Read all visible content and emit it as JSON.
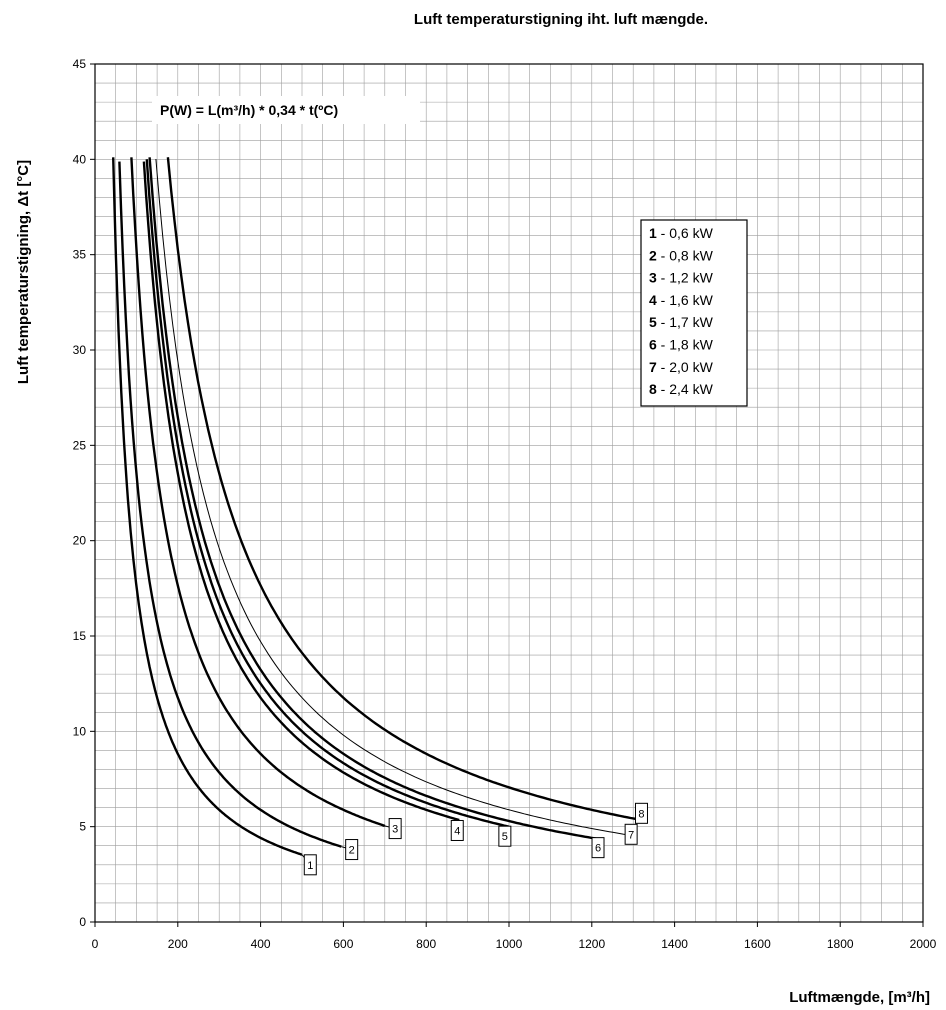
{
  "chart_data": {
    "type": "line",
    "title": "Luft temperaturstigning iht. luft mængde.",
    "xlabel": "Luftmængde, [m³/h]",
    "ylabel": "Luft temperaturstigning, Δt [°C]",
    "xlim": [
      0,
      2000
    ],
    "ylim": [
      0,
      45
    ],
    "x_ticks": [
      "0",
      "200",
      "400",
      "600",
      "800",
      "1000",
      "1200",
      "1400",
      "1600",
      "1800",
      "2000"
    ],
    "y_ticks": [
      "0",
      "5",
      "10",
      "15",
      "20",
      "25",
      "30",
      "35",
      "40",
      "45"
    ],
    "grid": true,
    "annotation": "P(W) = L(m³/h) * 0,34 * t(ºC)",
    "legend_position": "right",
    "series": [
      {
        "name": "1",
        "legend": "0,6 kW",
        "power_w": 600,
        "line": "thick",
        "x_range": [
          44,
          500
        ],
        "end_label_value": [
          520,
          3
        ]
      },
      {
        "name": "2",
        "legend": "0,8 kW",
        "power_w": 800,
        "line": "thick",
        "x_range": [
          59,
          595
        ],
        "end_label_value": [
          620,
          3.8
        ]
      },
      {
        "name": "3",
        "legend": "1,2 kW",
        "power_w": 1200,
        "line": "thick",
        "x_range": [
          88,
          700
        ],
        "end_label_value": [
          725,
          4.9
        ]
      },
      {
        "name": "4",
        "legend": "1,6 kW",
        "power_w": 1600,
        "line": "thick",
        "x_range": [
          118,
          880
        ],
        "end_label_value": [
          875,
          4.8
        ]
      },
      {
        "name": "5",
        "legend": "1,7 kW",
        "power_w": 1700,
        "line": "thick",
        "x_range": [
          125,
          1000
        ],
        "end_label_value": [
          990,
          4.5
        ]
      },
      {
        "name": "6",
        "legend": "1,8 kW",
        "power_w": 1800,
        "line": "thick",
        "x_range": [
          132,
          1230
        ],
        "end_label_value": [
          1215,
          3.9
        ]
      },
      {
        "name": "7",
        "legend": "2,0 kW",
        "power_w": 2000,
        "line": "thin",
        "x_range": [
          147,
          1300
        ],
        "end_label_value": [
          1295,
          4.6
        ]
      },
      {
        "name": "8",
        "legend": "2,4 kW",
        "power_w": 2400,
        "line": "thick",
        "x_range": [
          176,
          1310
        ],
        "end_label_value": [
          1320,
          5.7
        ]
      }
    ]
  }
}
